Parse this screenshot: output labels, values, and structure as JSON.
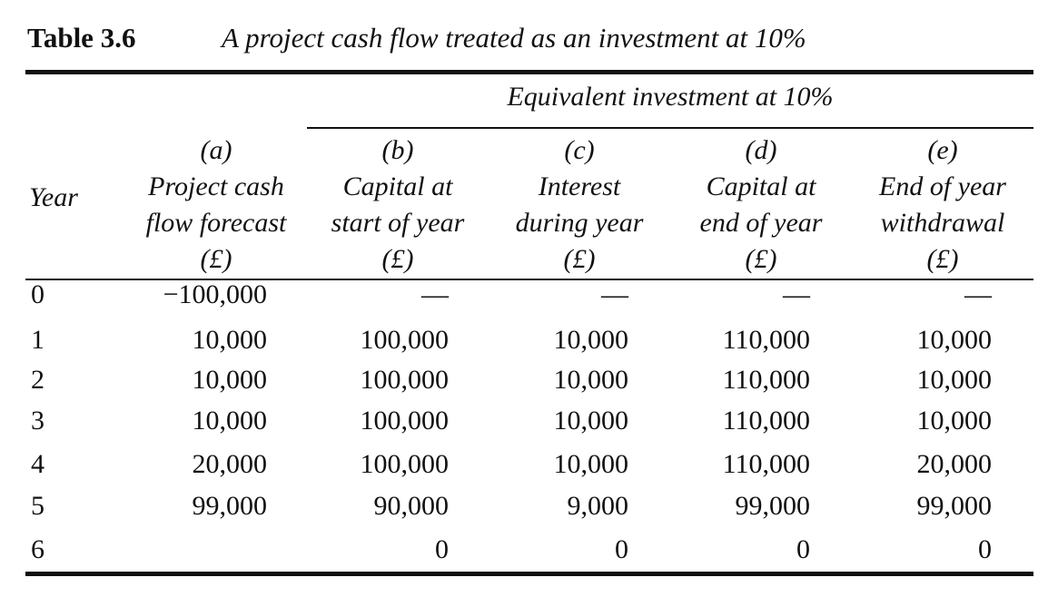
{
  "caption": {
    "label": "Table 3.6",
    "title": "A project cash flow treated as an investment at 10%"
  },
  "group_header": "Equivalent investment at 10%",
  "year_header": "Year",
  "columns": [
    {
      "letter": "(a)",
      "line1": "Project cash",
      "line2": "flow forecast",
      "unit": "(£)"
    },
    {
      "letter": "(b)",
      "line1": "Capital at",
      "line2": "start of year",
      "unit": "(£)"
    },
    {
      "letter": "(c)",
      "line1": "Interest",
      "line2": "during year",
      "unit": "(£)"
    },
    {
      "letter": "(d)",
      "line1": "Capital at",
      "line2": "end of year",
      "unit": "(£)"
    },
    {
      "letter": "(e)",
      "line1": "End of year",
      "line2": "withdrawal",
      "unit": "(£)"
    }
  ],
  "rows": [
    {
      "year": "0",
      "cells": [
        "−100,000",
        "—",
        "—",
        "—",
        "—"
      ]
    },
    {
      "year": "1",
      "cells": [
        "10,000",
        "100,000",
        "10,000",
        "110,000",
        "10,000"
      ]
    },
    {
      "year": "2",
      "cells": [
        "10,000",
        "100,000",
        "10,000",
        "110,000",
        "10,000"
      ]
    },
    {
      "year": "3",
      "cells": [
        "10,000",
        "100,000",
        "10,000",
        "110,000",
        "10,000"
      ]
    },
    {
      "year": "4",
      "cells": [
        "20,000",
        "100,000",
        "10,000",
        "110,000",
        "20,000"
      ]
    },
    {
      "year": "5",
      "cells": [
        "99,000",
        "90,000",
        "9,000",
        "99,000",
        "99,000"
      ]
    },
    {
      "year": "6",
      "cells": [
        "",
        "0",
        "0",
        "0",
        "0"
      ]
    }
  ]
}
